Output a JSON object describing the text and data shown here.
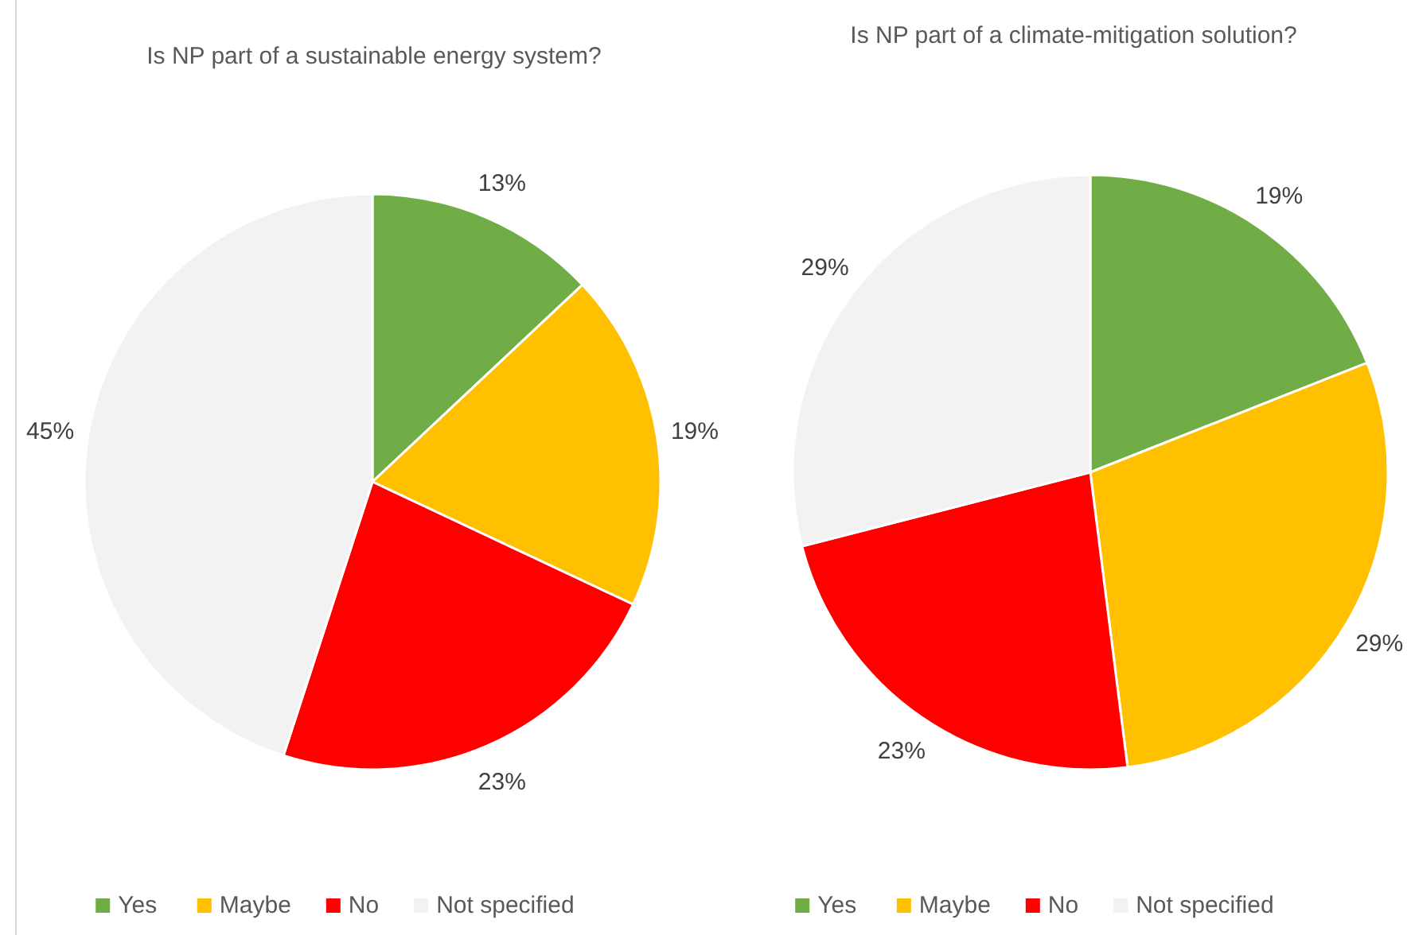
{
  "chart_data": [
    {
      "type": "pie",
      "title": "Is NP part of a sustainable energy system?",
      "categories": [
        "Yes",
        "Maybe",
        "No",
        "Not specified"
      ],
      "values": [
        13,
        19,
        23,
        45
      ],
      "value_labels": [
        "13%",
        "19%",
        "23%",
        "45%"
      ],
      "colors": [
        "#70ad47",
        "#ffc000",
        "#ff0000",
        "#f2f2f2"
      ],
      "legend": "bottom"
    },
    {
      "type": "pie",
      "title": "Is NP part of a climate-mitigation solution?",
      "categories": [
        "Yes",
        "Maybe",
        "No",
        "Not specified"
      ],
      "values": [
        19,
        29,
        23,
        29
      ],
      "value_labels": [
        "19%",
        "29%",
        "23%",
        "29%"
      ],
      "colors": [
        "#70ad47",
        "#ffc000",
        "#ff0000",
        "#f2f2f2"
      ],
      "legend": "bottom"
    }
  ]
}
